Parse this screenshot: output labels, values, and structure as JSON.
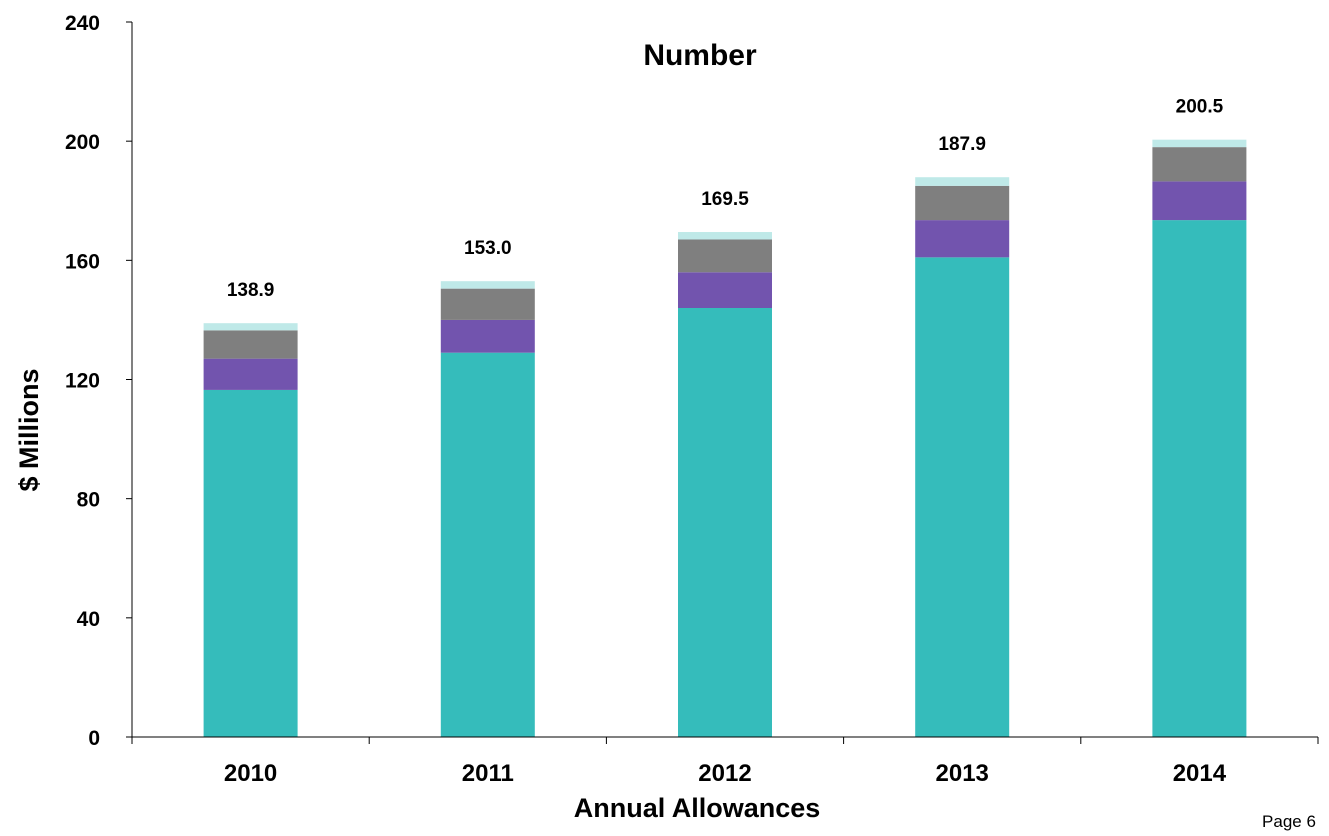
{
  "chart_data": {
    "type": "bar",
    "stacked": true,
    "title": "Number",
    "xlabel": "Annual Allowances",
    "ylabel": "$ Millions",
    "categories": [
      "2010",
      "2011",
      "2012",
      "2013",
      "2014"
    ],
    "ylim": [
      0,
      240
    ],
    "yticks": [
      0,
      40,
      80,
      120,
      160,
      200,
      240
    ],
    "ytick_labels": [
      "0",
      "40",
      "80",
      "120",
      "160",
      "200",
      "240"
    ],
    "grid": false,
    "legend": "none",
    "series": [
      {
        "color": "#35BCBB",
        "values": [
          116.5,
          129.0,
          144.0,
          161.0,
          173.5
        ]
      },
      {
        "color": "#7254AE",
        "values": [
          10.5,
          11.0,
          12.0,
          12.5,
          13.0
        ]
      },
      {
        "color": "#7F7F7F",
        "values": [
          9.5,
          10.5,
          11.0,
          11.5,
          11.5
        ]
      },
      {
        "color": "#BFE9E8",
        "values": [
          2.4,
          2.5,
          2.5,
          2.9,
          2.5
        ]
      }
    ],
    "totals": [
      138.9,
      153.0,
      169.5,
      187.9,
      200.5
    ],
    "total_labels": [
      "138.9",
      "153.0",
      "169.5",
      "187.9",
      "200.5"
    ]
  },
  "footer": {
    "page_label": "Page 6"
  }
}
